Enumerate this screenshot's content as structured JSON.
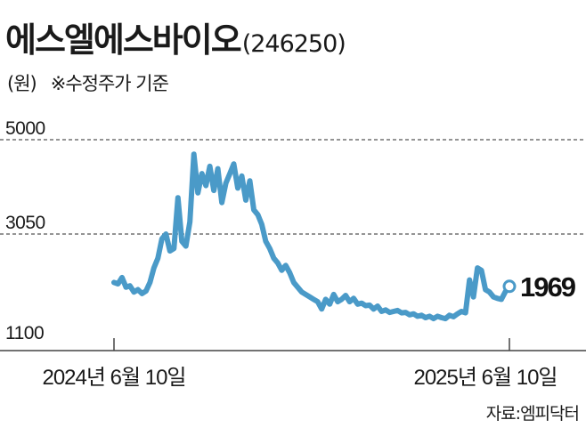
{
  "header": {
    "title": "에스엘에스바이오",
    "code": "(246250)",
    "unit": "(원)",
    "note": "※수정주가 기준"
  },
  "source": "자료:엠피닥터",
  "colors": {
    "line": "#4a9ac8",
    "marker_fill": "#ffffff",
    "axis": "#444444",
    "grid": "#555555"
  },
  "chart_data": {
    "type": "line",
    "title": "에스엘에스바이오(246250)",
    "ylabel": "(원)",
    "ylim": [
      1100,
      5000
    ],
    "yticks": [
      5000,
      3050,
      1100
    ],
    "grid": "dashed horizontal",
    "xlabels": [
      "2024년 6월 10일",
      "2025년 6월 10일"
    ],
    "x_range": [
      "2024-06-10",
      "2025-06-10"
    ],
    "end_value": 1969,
    "end_label": "1969",
    "series": [
      {
        "values": [
          2050,
          2020,
          2150,
          1950,
          1980,
          1850,
          1900,
          1820,
          1870,
          2050,
          2350,
          2550,
          2950,
          3050,
          2700,
          2750,
          3800,
          2900,
          2800,
          3300,
          4700,
          3900,
          4300,
          4050,
          4450,
          3950,
          4400,
          3700,
          4100,
          4300,
          4500,
          4000,
          4250,
          3750,
          4150,
          3550,
          3450,
          3250,
          2900,
          2750,
          2550,
          2450,
          2300,
          2400,
          2250,
          2050,
          1950,
          1850,
          1800,
          1750,
          1700,
          1650,
          1500,
          1700,
          1600,
          1800,
          1650,
          1700,
          1780,
          1650,
          1720,
          1600,
          1620,
          1570,
          1580,
          1500,
          1560,
          1450,
          1480,
          1430,
          1450,
          1470,
          1420,
          1430,
          1380,
          1400,
          1350,
          1370,
          1320,
          1350,
          1300,
          1350,
          1320,
          1300,
          1370,
          1340,
          1400,
          1450,
          1420,
          2100,
          1750,
          2350,
          2300,
          1900,
          1850,
          1750,
          1720,
          1700,
          1860,
          1969
        ]
      }
    ]
  }
}
